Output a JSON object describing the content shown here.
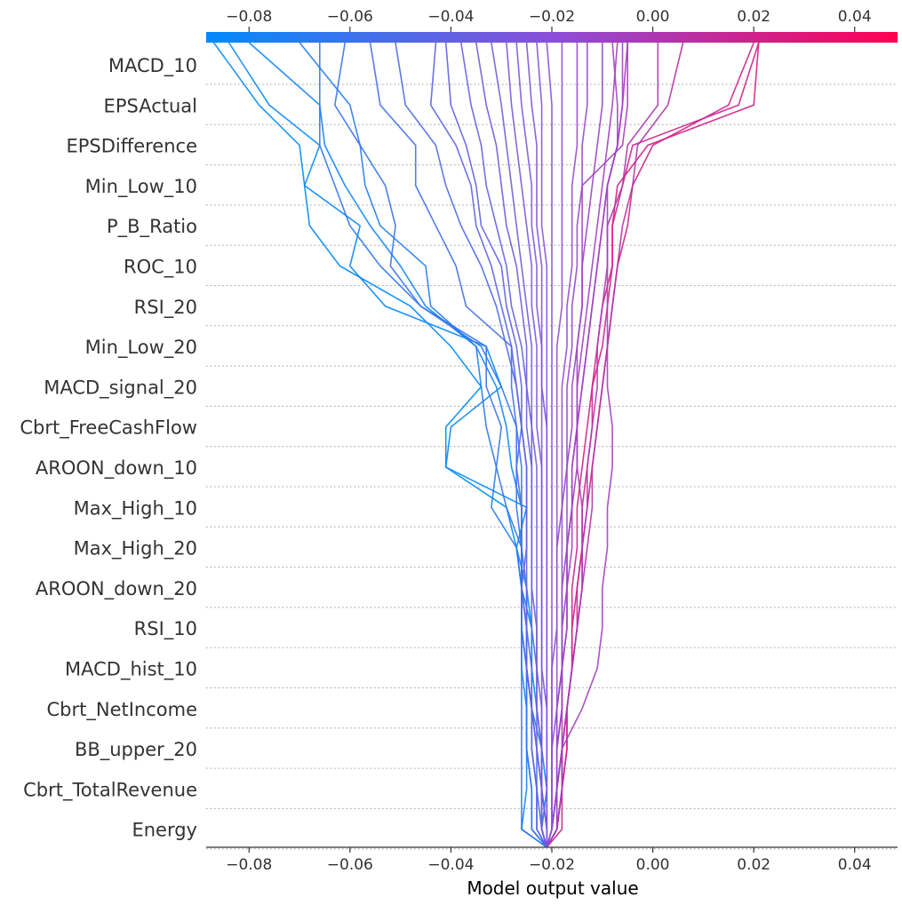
{
  "chart_data": {
    "type": "line",
    "subtype": "shap-decision-plot",
    "xlabel": "Model output value",
    "xlim": [
      -0.0885,
      0.0485
    ],
    "xticks": [
      -0.08,
      -0.06,
      -0.04,
      -0.02,
      0.0,
      0.02,
      0.04
    ],
    "xtick_labels": [
      "−0.08",
      "−0.06",
      "−0.04",
      "−0.02",
      "0.00",
      "0.02",
      "0.04"
    ],
    "features": [
      "MACD_10",
      "EPSActual",
      "EPSDifference",
      "Min_Low_10",
      "P_B_Ratio",
      "ROC_10",
      "RSI_20",
      "Min_Low_20",
      "MACD_signal_20",
      "Cbrt_FreeCashFlow",
      "AROON_down_10",
      "Max_High_10",
      "Max_High_20",
      "AROON_down_20",
      "RSI_10",
      "MACD_hist_10",
      "Cbrt_NetIncome",
      "BB_upper_20",
      "Cbrt_TotalRevenue",
      "Energy"
    ],
    "base_value": -0.021,
    "colormap": {
      "low": "#008bfb",
      "mid": "#8a4fd8",
      "high": "#ff0052"
    },
    "grid": "dotted-horizontal",
    "series_note": "Each line is one sample; values list model output after adding each feature contribution from the bottom (base value) to the top (MACD_10), 21 points per line.",
    "series": [
      {
        "values": [
          -0.021,
          -0.022,
          -0.021,
          -0.022,
          -0.023,
          -0.024,
          -0.024,
          -0.026,
          -0.027,
          -0.029,
          -0.041,
          -0.041,
          -0.034,
          -0.04,
          -0.048,
          -0.062,
          -0.068,
          -0.069,
          -0.07,
          -0.078,
          -0.087
        ]
      },
      {
        "values": [
          -0.021,
          -0.021,
          -0.022,
          -0.022,
          -0.024,
          -0.024,
          -0.024,
          -0.025,
          -0.027,
          -0.025,
          -0.041,
          -0.04,
          -0.03,
          -0.033,
          -0.053,
          -0.06,
          -0.058,
          -0.069,
          -0.066,
          -0.076,
          -0.084
        ]
      },
      {
        "values": [
          -0.021,
          -0.026,
          -0.026,
          -0.026,
          -0.026,
          -0.026,
          -0.026,
          -0.026,
          -0.026,
          -0.027,
          -0.027,
          -0.027,
          -0.03,
          -0.034,
          -0.046,
          -0.054,
          -0.06,
          -0.063,
          -0.066,
          -0.066,
          -0.066
        ]
      },
      {
        "values": [
          -0.021,
          -0.026,
          -0.025,
          -0.025,
          -0.025,
          -0.026,
          -0.026,
          -0.026,
          -0.026,
          -0.026,
          -0.028,
          -0.029,
          -0.031,
          -0.035,
          -0.045,
          -0.05,
          -0.056,
          -0.061,
          -0.065,
          -0.066,
          -0.08
        ]
      },
      {
        "values": [
          -0.021,
          -0.024,
          -0.024,
          -0.025,
          -0.025,
          -0.025,
          -0.026,
          -0.026,
          -0.027,
          -0.032,
          -0.031,
          -0.033,
          -0.034,
          -0.035,
          -0.044,
          -0.045,
          -0.054,
          -0.057,
          -0.058,
          -0.06,
          -0.07
        ]
      },
      {
        "values": [
          -0.021,
          -0.024,
          -0.024,
          -0.025,
          -0.025,
          -0.025,
          -0.025,
          -0.026,
          -0.026,
          -0.029,
          -0.031,
          -0.03,
          -0.033,
          -0.033,
          -0.046,
          -0.052,
          -0.051,
          -0.053,
          -0.058,
          -0.063,
          -0.061
        ]
      },
      {
        "values": [
          -0.021,
          -0.023,
          -0.023,
          -0.024,
          -0.024,
          -0.025,
          -0.025,
          -0.025,
          -0.026,
          -0.026,
          -0.026,
          -0.027,
          -0.028,
          -0.028,
          -0.037,
          -0.039,
          -0.043,
          -0.047,
          -0.047,
          -0.054,
          -0.056
        ]
      },
      {
        "values": [
          -0.021,
          -0.022,
          -0.023,
          -0.023,
          -0.024,
          -0.025,
          -0.026,
          -0.026,
          -0.026,
          -0.026,
          -0.027,
          -0.026,
          -0.027,
          -0.029,
          -0.031,
          -0.034,
          -0.038,
          -0.041,
          -0.043,
          -0.049,
          -0.051
        ]
      },
      {
        "values": [
          -0.021,
          -0.023,
          -0.023,
          -0.024,
          -0.024,
          -0.024,
          -0.025,
          -0.025,
          -0.025,
          -0.025,
          -0.025,
          -0.026,
          -0.027,
          -0.028,
          -0.03,
          -0.032,
          -0.035,
          -0.036,
          -0.039,
          -0.044,
          -0.043
        ]
      },
      {
        "values": [
          -0.021,
          -0.022,
          -0.022,
          -0.023,
          -0.024,
          -0.025,
          -0.025,
          -0.026,
          -0.025,
          -0.025,
          -0.025,
          -0.026,
          -0.026,
          -0.027,
          -0.029,
          -0.03,
          -0.034,
          -0.035,
          -0.037,
          -0.04,
          -0.041
        ]
      },
      {
        "values": [
          -0.021,
          -0.022,
          -0.022,
          -0.023,
          -0.023,
          -0.023,
          -0.024,
          -0.024,
          -0.024,
          -0.024,
          -0.024,
          -0.025,
          -0.025,
          -0.026,
          -0.028,
          -0.029,
          -0.031,
          -0.033,
          -0.034,
          -0.036,
          -0.038
        ]
      },
      {
        "values": [
          -0.021,
          -0.022,
          -0.022,
          -0.022,
          -0.023,
          -0.023,
          -0.023,
          -0.024,
          -0.024,
          -0.024,
          -0.024,
          -0.024,
          -0.025,
          -0.025,
          -0.026,
          -0.027,
          -0.029,
          -0.03,
          -0.031,
          -0.033,
          -0.035
        ]
      },
      {
        "values": [
          -0.021,
          -0.022,
          -0.022,
          -0.022,
          -0.022,
          -0.023,
          -0.023,
          -0.023,
          -0.023,
          -0.023,
          -0.023,
          -0.024,
          -0.024,
          -0.024,
          -0.025,
          -0.026,
          -0.027,
          -0.028,
          -0.029,
          -0.03,
          -0.032
        ]
      },
      {
        "values": [
          -0.021,
          -0.021,
          -0.022,
          -0.022,
          -0.022,
          -0.022,
          -0.022,
          -0.022,
          -0.022,
          -0.022,
          -0.022,
          -0.023,
          -0.023,
          -0.023,
          -0.024,
          -0.024,
          -0.025,
          -0.026,
          -0.027,
          -0.028,
          -0.029
        ]
      },
      {
        "values": [
          -0.021,
          -0.021,
          -0.021,
          -0.021,
          -0.021,
          -0.022,
          -0.022,
          -0.022,
          -0.022,
          -0.022,
          -0.022,
          -0.022,
          -0.022,
          -0.022,
          -0.023,
          -0.023,
          -0.024,
          -0.024,
          -0.025,
          -0.026,
          -0.027
        ]
      },
      {
        "values": [
          -0.021,
          -0.021,
          -0.021,
          -0.021,
          -0.021,
          -0.021,
          -0.021,
          -0.021,
          -0.021,
          -0.021,
          -0.021,
          -0.021,
          -0.022,
          -0.022,
          -0.022,
          -0.022,
          -0.023,
          -0.023,
          -0.023,
          -0.024,
          -0.025
        ]
      },
      {
        "values": [
          -0.021,
          -0.021,
          -0.021,
          -0.021,
          -0.021,
          -0.021,
          -0.021,
          -0.021,
          -0.021,
          -0.021,
          -0.021,
          -0.021,
          -0.021,
          -0.021,
          -0.021,
          -0.021,
          -0.022,
          -0.022,
          -0.022,
          -0.022,
          -0.023
        ]
      },
      {
        "values": [
          -0.021,
          -0.02,
          -0.02,
          -0.02,
          -0.02,
          -0.02,
          -0.02,
          -0.02,
          -0.02,
          -0.02,
          -0.02,
          -0.02,
          -0.02,
          -0.02,
          -0.02,
          -0.02,
          -0.02,
          -0.02,
          -0.02,
          -0.02,
          -0.021
        ]
      },
      {
        "values": [
          -0.021,
          -0.02,
          -0.02,
          -0.02,
          -0.02,
          -0.02,
          -0.019,
          -0.019,
          -0.019,
          -0.019,
          -0.019,
          -0.019,
          -0.019,
          -0.019,
          -0.018,
          -0.018,
          -0.018,
          -0.018,
          -0.018,
          -0.018,
          -0.018
        ]
      },
      {
        "values": [
          -0.021,
          -0.02,
          -0.02,
          -0.02,
          -0.019,
          -0.019,
          -0.019,
          -0.019,
          -0.019,
          -0.018,
          -0.018,
          -0.018,
          -0.018,
          -0.017,
          -0.017,
          -0.016,
          -0.016,
          -0.016,
          -0.015,
          -0.015,
          -0.015
        ]
      },
      {
        "values": [
          -0.021,
          -0.02,
          -0.019,
          -0.019,
          -0.019,
          -0.018,
          -0.018,
          -0.018,
          -0.018,
          -0.018,
          -0.017,
          -0.017,
          -0.017,
          -0.016,
          -0.016,
          -0.015,
          -0.015,
          -0.014,
          -0.014,
          -0.013,
          -0.013
        ]
      },
      {
        "values": [
          -0.021,
          -0.02,
          -0.019,
          -0.019,
          -0.018,
          -0.018,
          -0.018,
          -0.018,
          -0.017,
          -0.017,
          -0.017,
          -0.016,
          -0.016,
          -0.015,
          -0.014,
          -0.014,
          -0.013,
          -0.012,
          -0.011,
          -0.01,
          -0.01
        ]
      },
      {
        "values": [
          -0.021,
          -0.019,
          -0.019,
          -0.019,
          -0.018,
          -0.018,
          -0.017,
          -0.017,
          -0.017,
          -0.016,
          -0.016,
          -0.015,
          -0.015,
          -0.014,
          -0.013,
          -0.012,
          -0.011,
          -0.01,
          -0.009,
          -0.008,
          -0.007
        ]
      },
      {
        "values": [
          -0.021,
          -0.019,
          -0.019,
          -0.018,
          -0.018,
          -0.018,
          -0.017,
          -0.017,
          -0.016,
          -0.016,
          -0.015,
          -0.015,
          -0.014,
          -0.013,
          -0.012,
          -0.011,
          -0.01,
          -0.009,
          -0.007,
          -0.006,
          -0.005
        ]
      },
      {
        "values": [
          -0.021,
          -0.019,
          -0.018,
          -0.018,
          -0.017,
          -0.016,
          -0.015,
          -0.014,
          -0.014,
          -0.014,
          -0.015,
          -0.015,
          -0.015,
          -0.015,
          -0.014,
          -0.014,
          -0.014,
          -0.014,
          -0.006,
          -0.005,
          -0.005
        ]
      },
      {
        "values": [
          -0.021,
          -0.02,
          -0.019,
          -0.018,
          -0.014,
          -0.011,
          -0.01,
          -0.01,
          -0.009,
          -0.009,
          -0.008,
          -0.008,
          -0.009,
          -0.009,
          -0.009,
          -0.009,
          -0.009,
          -0.009,
          -0.007,
          -0.006,
          -0.006
        ]
      },
      {
        "values": [
          -0.021,
          -0.02,
          -0.019,
          -0.018,
          -0.017,
          -0.016,
          -0.015,
          -0.014,
          -0.014,
          -0.013,
          -0.013,
          -0.012,
          -0.011,
          -0.011,
          -0.01,
          -0.009,
          -0.009,
          -0.006,
          -0.005,
          0.001,
          0.001
        ]
      },
      {
        "values": [
          -0.021,
          -0.019,
          -0.018,
          -0.018,
          -0.017,
          -0.016,
          -0.016,
          -0.015,
          -0.014,
          -0.014,
          -0.013,
          -0.012,
          -0.012,
          -0.011,
          -0.01,
          -0.008,
          -0.008,
          -0.007,
          -0.001,
          0.02,
          0.021
        ]
      },
      {
        "values": [
          -0.021,
          -0.018,
          -0.018,
          -0.017,
          -0.017,
          -0.016,
          -0.016,
          -0.016,
          -0.015,
          -0.015,
          -0.014,
          -0.013,
          -0.012,
          -0.01,
          -0.009,
          -0.008,
          -0.008,
          -0.006,
          -0.004,
          0.017,
          0.021
        ]
      },
      {
        "values": [
          -0.021,
          -0.019,
          -0.018,
          -0.017,
          -0.017,
          -0.016,
          -0.015,
          -0.015,
          -0.014,
          -0.013,
          -0.012,
          -0.011,
          -0.01,
          -0.009,
          -0.008,
          -0.007,
          -0.005,
          -0.004,
          0.0,
          0.015,
          0.02
        ]
      },
      {
        "values": [
          -0.021,
          -0.019,
          -0.018,
          -0.018,
          -0.017,
          -0.016,
          -0.015,
          -0.014,
          -0.013,
          -0.012,
          -0.012,
          -0.011,
          -0.01,
          -0.009,
          -0.008,
          -0.007,
          -0.006,
          -0.004,
          -0.003,
          0.003,
          0.006
        ]
      },
      {
        "values": [
          -0.021,
          -0.02,
          -0.019,
          -0.019,
          -0.019,
          -0.018,
          -0.018,
          -0.017,
          -0.017,
          -0.016,
          -0.016,
          -0.015,
          -0.014,
          -0.013,
          -0.012,
          -0.011,
          -0.01,
          -0.009,
          -0.007,
          -0.007,
          -0.008
        ]
      }
    ]
  }
}
